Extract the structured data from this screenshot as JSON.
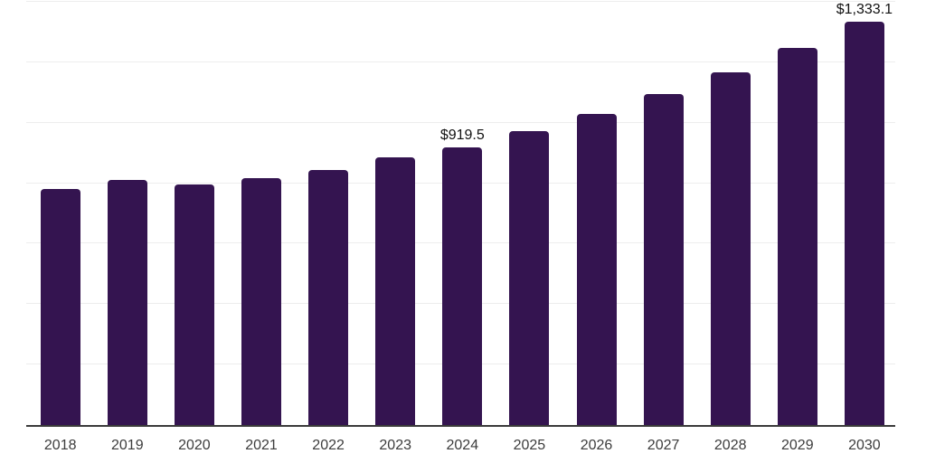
{
  "chart_data": {
    "type": "bar",
    "title": "",
    "xlabel": "",
    "ylabel": "",
    "categories": [
      "2018",
      "2019",
      "2020",
      "2021",
      "2022",
      "2023",
      "2024",
      "2025",
      "2026",
      "2027",
      "2028",
      "2029",
      "2030"
    ],
    "values": [
      780,
      810,
      797,
      817,
      844,
      887,
      919.5,
      971,
      1028,
      1094,
      1168,
      1246,
      1333.1
    ],
    "data_labels": {
      "2024": "$919.5",
      "2030": "$1,333.1"
    },
    "ylim": [
      0,
      1400
    ],
    "gridline_values": [
      200,
      400,
      600,
      800,
      1000,
      1200,
      1400
    ],
    "grid": "horizontal-only",
    "legend": "none",
    "y_tick_labels_shown": false
  },
  "style": {
    "bar_color": "#341450",
    "gridline_color": "#ededed",
    "axis_line_color": "#3a3a3a",
    "year_label_color": "#3c3c3c",
    "data_label_color": "#111111",
    "background_color": "#ffffff"
  }
}
